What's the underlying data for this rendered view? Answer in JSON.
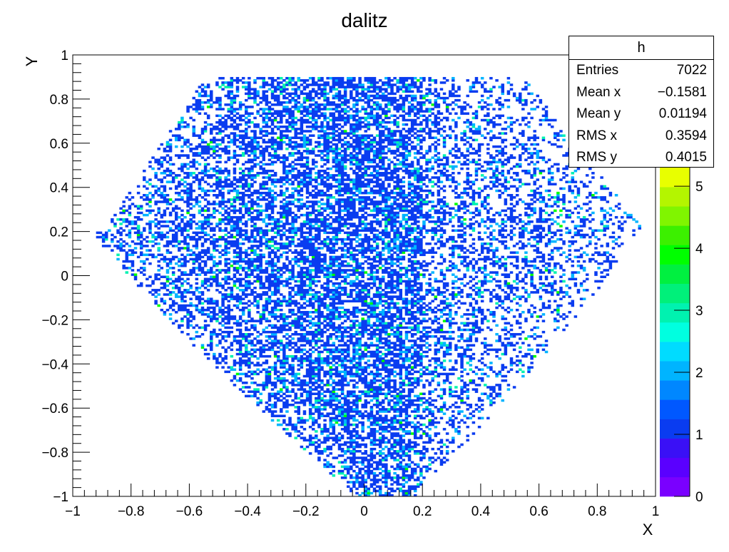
{
  "chart_data": {
    "type": "heatmap",
    "title": "dalitz",
    "xlabel": "X",
    "ylabel": "Y",
    "xlim": [
      -1,
      1
    ],
    "ylim": [
      -1,
      1
    ],
    "x_ticks": [
      "−1",
      "−0.8",
      "−0.6",
      "−0.4",
      "−0.2",
      "0",
      "0.2",
      "0.4",
      "0.6",
      "0.8",
      "1"
    ],
    "y_ticks": [
      "−1",
      "−0.8",
      "−0.6",
      "−0.4",
      "−0.2",
      "0",
      "0.2",
      "0.4",
      "0.6",
      "0.8",
      "1"
    ],
    "x_tick_values": [
      -1,
      -0.8,
      -0.6,
      -0.4,
      -0.2,
      0,
      0.2,
      0.4,
      0.6,
      0.8,
      1
    ],
    "y_tick_values": [
      -1,
      -0.8,
      -0.6,
      -0.4,
      -0.2,
      0,
      0.2,
      0.4,
      0.6,
      0.8,
      1
    ],
    "bins": {
      "nx": 200,
      "ny": 200,
      "range": [
        -1,
        1
      ]
    },
    "entries_total": 7022,
    "seed": 7022,
    "count_distribution": {
      "1": 0.78,
      "2": 0.16,
      "3": 0.05,
      "4": 0.01
    },
    "colorbar": {
      "min": 0,
      "max": 5.3,
      "ticks": [
        "0",
        "1",
        "2",
        "3",
        "4",
        "5"
      ],
      "tick_values": [
        0,
        1,
        2,
        3,
        4,
        5
      ],
      "palette": [
        "#7a00ff",
        "#5a00ff",
        "#3a10f6",
        "#0a3cf0",
        "#0058ff",
        "#0087ff",
        "#00b4ff",
        "#00dcff",
        "#00ffe0",
        "#00f2b0",
        "#00f07a",
        "#00f040",
        "#00ff00",
        "#3cf000",
        "#80f500",
        "#b4f500",
        "#e8ff00"
      ]
    },
    "grid": false,
    "legend": "none"
  },
  "stats": {
    "title": "h",
    "rows": [
      {
        "label": "Entries",
        "value": "7022"
      },
      {
        "label": "Mean x",
        "value": "−0.1581"
      },
      {
        "label": "Mean y",
        "value": "0.01194"
      },
      {
        "label": "RMS x",
        "value": "0.3594"
      },
      {
        "label": "RMS y",
        "value": "0.4015"
      }
    ]
  }
}
